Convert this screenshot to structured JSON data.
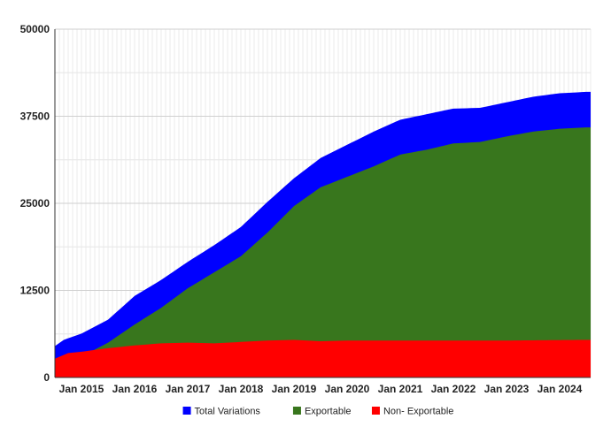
{
  "chart_data": {
    "type": "area",
    "stacking": "overlapping",
    "x_start": "2014-07",
    "x_interval": "month",
    "x_ticks": [
      "Jan 2015",
      "Jan 2016",
      "Jan 2017",
      "Jan 2018",
      "Jan 2019",
      "Jan 2020",
      "Jan 2021",
      "Jan 2022",
      "Jan 2023",
      "Jan 2024"
    ],
    "y_ticks": [
      "0",
      "12500",
      "25000",
      "37500",
      "50000"
    ],
    "ylim": [
      0,
      50000
    ],
    "grid": true,
    "legend_position": "bottom",
    "series": [
      {
        "name": "Total Variations",
        "color": "#0000ff",
        "anchors": [
          [
            "2014-07",
            4500
          ],
          [
            "2014-09",
            5400
          ],
          [
            "2015-01",
            6300
          ],
          [
            "2015-07",
            8300
          ],
          [
            "2016-01",
            11700
          ],
          [
            "2016-07",
            14000
          ],
          [
            "2017-01",
            16600
          ],
          [
            "2017-07",
            19000
          ],
          [
            "2018-01",
            21600
          ],
          [
            "2018-07",
            25200
          ],
          [
            "2019-01",
            28600
          ],
          [
            "2019-07",
            31500
          ],
          [
            "2020-01",
            33400
          ],
          [
            "2020-07",
            35300
          ],
          [
            "2021-01",
            37000
          ],
          [
            "2021-07",
            37800
          ],
          [
            "2022-01",
            38600
          ],
          [
            "2022-07",
            38700
          ],
          [
            "2023-01",
            39500
          ],
          [
            "2023-07",
            40300
          ],
          [
            "2024-01",
            40800
          ],
          [
            "2024-07",
            41000
          ]
        ]
      },
      {
        "name": "Exportable",
        "color": "#38761d",
        "anchors": [
          [
            "2014-07",
            2000
          ],
          [
            "2015-01",
            3000
          ],
          [
            "2015-07",
            5000
          ],
          [
            "2016-01",
            7600
          ],
          [
            "2016-07",
            10000
          ],
          [
            "2017-01",
            12800
          ],
          [
            "2017-07",
            15100
          ],
          [
            "2018-01",
            17400
          ],
          [
            "2018-07",
            20800
          ],
          [
            "2019-01",
            24600
          ],
          [
            "2019-07",
            27300
          ],
          [
            "2020-01",
            28800
          ],
          [
            "2020-07",
            30300
          ],
          [
            "2021-01",
            32000
          ],
          [
            "2021-07",
            32700
          ],
          [
            "2022-01",
            33600
          ],
          [
            "2022-07",
            33800
          ],
          [
            "2023-01",
            34600
          ],
          [
            "2023-07",
            35300
          ],
          [
            "2024-01",
            35700
          ],
          [
            "2024-07",
            35900
          ]
        ]
      },
      {
        "name": "Non- Exportable",
        "color": "#ff0000",
        "anchors": [
          [
            "2014-07",
            2700
          ],
          [
            "2014-10",
            3500
          ],
          [
            "2015-01",
            3700
          ],
          [
            "2015-07",
            4200
          ],
          [
            "2016-01",
            4600
          ],
          [
            "2016-07",
            4900
          ],
          [
            "2017-01",
            5000
          ],
          [
            "2017-07",
            4900
          ],
          [
            "2018-01",
            5100
          ],
          [
            "2018-07",
            5300
          ],
          [
            "2019-01",
            5400
          ],
          [
            "2019-07",
            5200
          ],
          [
            "2020-01",
            5300
          ],
          [
            "2021-01",
            5300
          ],
          [
            "2022-01",
            5300
          ],
          [
            "2023-01",
            5300
          ],
          [
            "2024-07",
            5400
          ]
        ]
      }
    ]
  }
}
